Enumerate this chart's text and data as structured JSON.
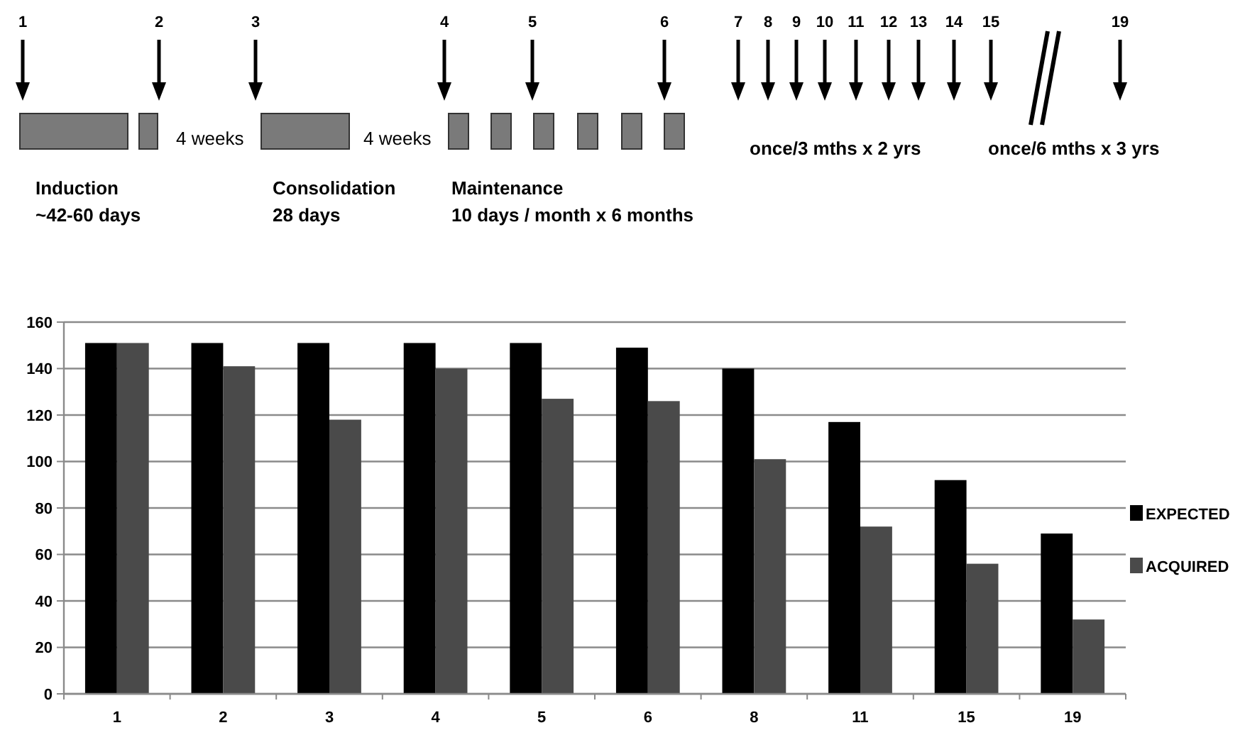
{
  "chart_data": {
    "type": "bar",
    "categories": [
      "1",
      "2",
      "3",
      "4",
      "5",
      "6",
      "8",
      "11",
      "15",
      "19"
    ],
    "series": [
      {
        "name": "EXPECTED",
        "color": "#000000",
        "values": [
          151,
          151,
          151,
          151,
          151,
          149,
          140,
          117,
          92,
          69
        ]
      },
      {
        "name": "ACQUIRED",
        "color": "#4a4a4a",
        "values": [
          151,
          141,
          118,
          140,
          127,
          126,
          101,
          72,
          56,
          32
        ]
      }
    ],
    "ylim": [
      0,
      160
    ],
    "yticks": [
      0,
      20,
      40,
      60,
      80,
      100,
      120,
      140,
      160
    ],
    "grid": "y",
    "legend": "right",
    "annotations": [
      "1",
      "2",
      "3",
      "4",
      "5",
      "6",
      "7",
      "8",
      "9",
      "10",
      "11",
      "12",
      "13",
      "14",
      "15",
      "19",
      "4 weeks",
      "4 weeks",
      "Induction",
      "~42-60 days",
      "Consolidation",
      "28 days",
      "Maintenance",
      "10 days / month x 6 months",
      "once/3 mths x 2 yrs",
      "once/6 mths x 3 yrs"
    ]
  }
}
